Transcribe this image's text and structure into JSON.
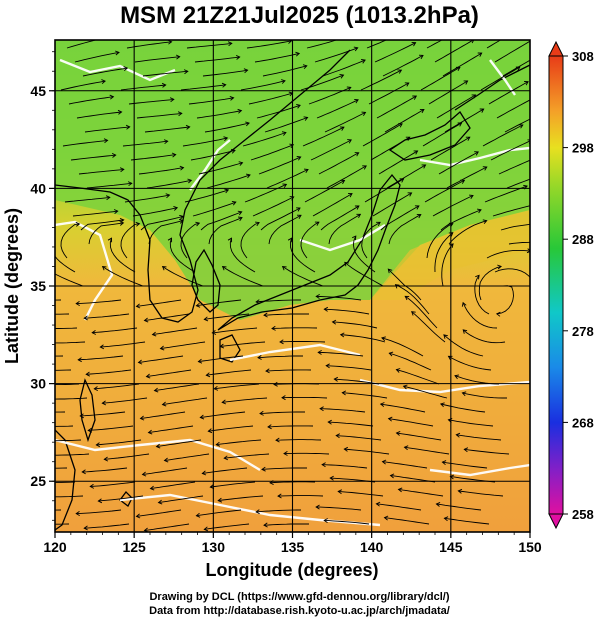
{
  "title": "MSM 21Z21Jul2025 (1013.2hPa)",
  "axes": {
    "xlabel": "Longitude (degrees)",
    "ylabel": "Latitude  (degrees)",
    "x_ticks": [
      "120",
      "125",
      "130",
      "135",
      "140",
      "145",
      "150"
    ],
    "y_ticks": [
      "25",
      "30",
      "35",
      "40",
      "45"
    ],
    "xlim": [
      120,
      150
    ],
    "ylim": [
      22.4,
      47.6
    ]
  },
  "colorbar": {
    "labels": [
      "308",
      "298",
      "288",
      "278",
      "268",
      "258"
    ],
    "min": 258,
    "max": 308,
    "colors": {
      "magenta": "#e0109c",
      "blue": "#1a2fe0",
      "cyan": "#10c8e8",
      "green": "#28c838",
      "yellow_green": "#c8e820",
      "orange": "#f4a028",
      "red": "#e83c18"
    }
  },
  "map_colors": {
    "warm_sea": "#f2a23c",
    "mid": "#f2c232",
    "cool_land": "#7ad23c",
    "contour": "#ffffff",
    "coast": "#000000",
    "streamline": "#000000"
  },
  "credits": {
    "line1": "Drawing by DCL (https://www.gfd-dennou.org/library/dcl/)",
    "line2": "Data from http://database.rish.kyoto-u.ac.jp/arch/jmadata/"
  }
}
